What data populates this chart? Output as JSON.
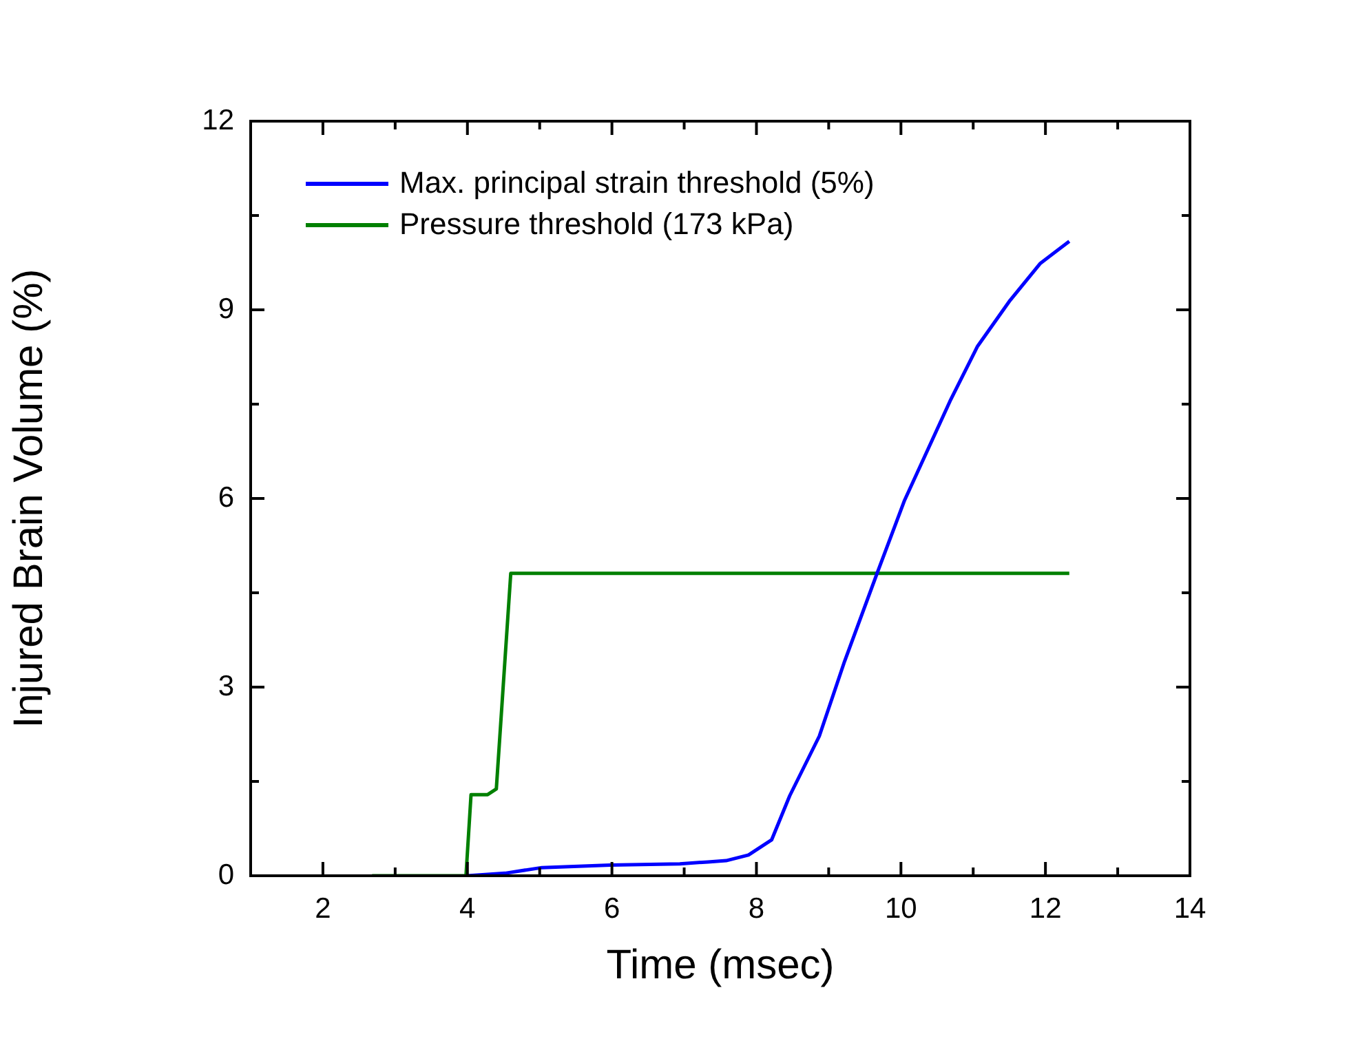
{
  "chart_data": {
    "type": "line",
    "xlabel": "Time (msec)",
    "ylabel": "Injured Brain Volume (%)",
    "xlim": [
      1,
      14
    ],
    "ylim": [
      0,
      12
    ],
    "xticks": [
      2,
      {
        "value": 3,
        "label": null
      },
      4,
      {
        "value": 5,
        "label": null
      },
      6,
      {
        "value": 7,
        "label": null
      },
      8,
      {
        "value": 9,
        "label": null
      },
      10,
      {
        "value": 11,
        "label": null
      },
      12,
      {
        "value": 13,
        "label": null
      },
      14
    ],
    "yticks": [
      0,
      {
        "value": 1.5,
        "label": null
      },
      3,
      {
        "value": 4.5,
        "label": null
      },
      6,
      {
        "value": 7.5,
        "label": null
      },
      9,
      {
        "value": 10.5,
        "label": null
      },
      12
    ],
    "grid": false,
    "legend": "top left",
    "marker": "none",
    "line_style": "solid",
    "series": [
      {
        "name": "Max. principal strain threshold (5%)",
        "color": "#0000ff",
        "x": [
          4.0,
          4.52,
          5.03,
          5.98,
          6.94,
          7.33,
          7.58,
          7.89,
          7.97,
          8.21,
          8.46,
          8.87,
          9.22,
          9.67,
          10.05,
          10.68,
          11.06,
          11.51,
          11.93,
          12.33
        ],
        "values": [
          0,
          0.04,
          0.13,
          0.17,
          0.19,
          0.22,
          0.24,
          0.33,
          0.39,
          0.57,
          1.27,
          2.22,
          3.41,
          4.81,
          5.97,
          7.55,
          8.42,
          9.15,
          9.74,
          10.09
        ]
      },
      {
        "name": "Pressure threshold (173 kPa)",
        "color": "#008000",
        "x": [
          2.68,
          3.98,
          4.05,
          4.28,
          4.4,
          4.6,
          12.33
        ],
        "values": [
          0,
          0,
          1.29,
          1.29,
          1.38,
          4.81,
          4.81
        ]
      }
    ]
  }
}
